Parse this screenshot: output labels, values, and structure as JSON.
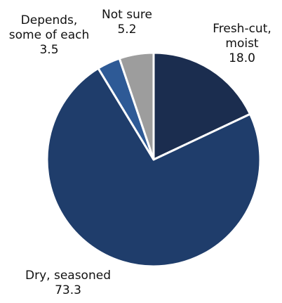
{
  "chart_data": {
    "type": "pie",
    "title": "",
    "slices": [
      {
        "label_lines": [
          "Fresh-cut,",
          "moist"
        ],
        "value": 18.0,
        "value_text": "18.0",
        "color": "#1b2d4f"
      },
      {
        "label_lines": [
          "Dry, seasoned"
        ],
        "value": 73.3,
        "value_text": "73.3",
        "color": "#1f3d6b"
      },
      {
        "label_lines": [
          "Depends,",
          "some of each"
        ],
        "value": 3.5,
        "value_text": "3.5",
        "color": "#2e5a96"
      },
      {
        "label_lines": [
          "Not sure"
        ],
        "value": 5.2,
        "value_text": "5.2",
        "color": "#9d9d9d"
      }
    ]
  }
}
